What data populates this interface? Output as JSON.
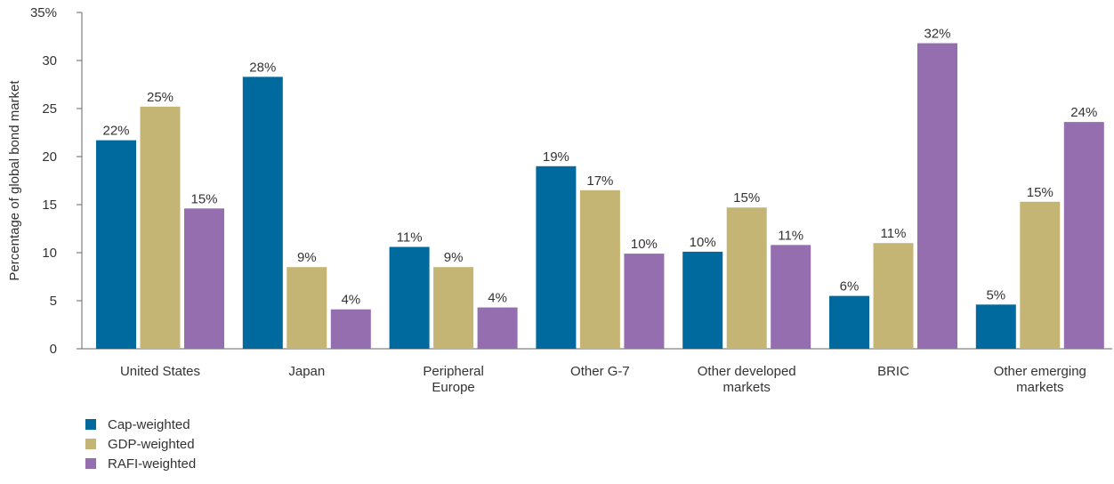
{
  "chart_data": {
    "type": "bar",
    "ylabel": "Percentage of global bond market",
    "ylim": [
      0,
      35
    ],
    "yticks": [
      0,
      5,
      10,
      15,
      20,
      25,
      30,
      35
    ],
    "ytick_labels": [
      "0",
      "5",
      "10",
      "15",
      "20",
      "25",
      "30",
      "35%"
    ],
    "categories": [
      [
        "United States"
      ],
      [
        "Japan"
      ],
      [
        "Peripheral",
        "Europe"
      ],
      [
        "Other G-7"
      ],
      [
        "Other developed",
        "markets"
      ],
      [
        "BRIC"
      ],
      [
        "Other emerging",
        "markets"
      ]
    ],
    "series": [
      {
        "name": "Cap-weighted",
        "color": "#006a9e",
        "values": [
          21.7,
          28.3,
          10.6,
          19.0,
          10.1,
          5.5,
          4.6
        ],
        "labels": [
          "22%",
          "28%",
          "11%",
          "19%",
          "10%",
          "6%",
          "5%"
        ]
      },
      {
        "name": "GDP-weighted",
        "color": "#c5b574",
        "values": [
          25.2,
          8.5,
          8.5,
          16.5,
          14.7,
          11.0,
          15.3
        ],
        "labels": [
          "25%",
          "9%",
          "9%",
          "17%",
          "15%",
          "11%",
          "15%"
        ]
      },
      {
        "name": "RAFI-weighted",
        "color": "#956eb0",
        "values": [
          14.6,
          4.1,
          4.3,
          9.9,
          10.8,
          31.8,
          23.6
        ],
        "labels": [
          "15%",
          "4%",
          "4%",
          "10%",
          "11%",
          "32%",
          "24%"
        ]
      }
    ],
    "legend_position": "bottom-left",
    "grid": false
  }
}
